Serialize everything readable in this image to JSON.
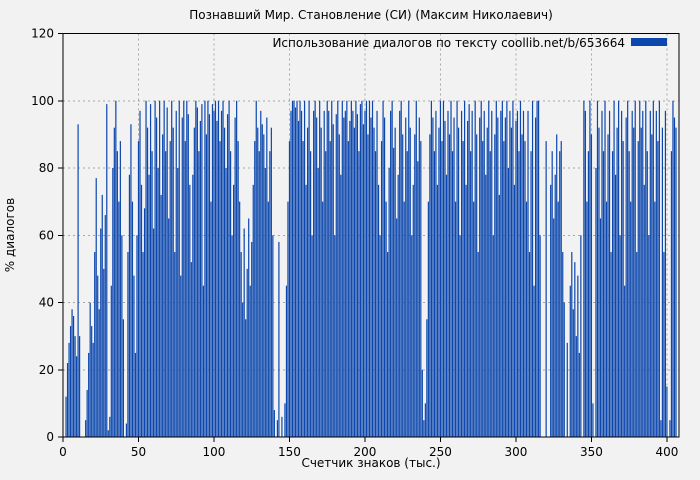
{
  "window": {
    "background_color": "#f2f2f2",
    "border_color": "#000000",
    "grid_color": "#a8a8a8",
    "text_color": "#000000"
  },
  "chart_data": {
    "type": "bar",
    "style": "impulses",
    "title": "Познавший Мир. Становление (СИ) (Максим Николаевич)",
    "legend": {
      "label": "Использование диалогов по тексту coollib.net/b/653664",
      "position": "top-right-inside"
    },
    "xlabel": "Счетчик знаков (тыс.)",
    "ylabel": "% диалогов",
    "xlim": [
      0,
      408
    ],
    "ylim": [
      0,
      120
    ],
    "xticks": [
      0,
      50,
      100,
      150,
      200,
      250,
      300,
      350,
      400
    ],
    "yticks": [
      0,
      20,
      40,
      60,
      80,
      100,
      120
    ],
    "grid": true,
    "bar_color": "#0c47ad",
    "x_start": 0,
    "x_step": 1,
    "values": [
      0,
      0,
      12,
      22,
      28,
      33,
      38,
      36,
      30,
      24,
      93,
      30,
      0,
      0,
      0,
      5,
      14,
      25,
      40,
      33,
      28,
      55,
      77,
      48,
      38,
      62,
      72,
      50,
      66,
      99,
      2,
      6,
      45,
      80,
      92,
      100,
      85,
      70,
      88,
      60,
      35,
      0,
      4,
      55,
      78,
      93,
      70,
      48,
      25,
      60,
      88,
      97,
      75,
      55,
      68,
      100,
      92,
      78,
      99,
      85,
      62,
      100,
      95,
      80,
      100,
      72,
      90,
      100,
      85,
      98,
      65,
      88,
      100,
      92,
      55,
      97,
      80,
      100,
      48,
      95,
      100,
      88,
      100,
      96,
      75,
      52,
      78,
      92,
      100,
      98,
      85,
      94,
      99,
      45,
      100,
      90,
      100,
      96,
      70,
      99,
      97,
      100,
      94,
      100,
      88,
      97,
      100,
      92,
      80,
      96,
      100,
      85,
      60,
      75,
      95,
      100,
      88,
      70,
      55,
      40,
      62,
      35,
      50,
      65,
      45,
      58,
      75,
      88,
      100,
      92,
      85,
      97,
      93,
      90,
      80,
      95,
      70,
      85,
      92,
      60,
      8,
      0,
      5,
      58,
      0,
      6,
      0,
      10,
      45,
      70,
      88,
      97,
      100,
      100,
      98,
      100,
      94,
      100,
      97,
      88,
      100,
      75,
      92,
      100,
      85,
      60,
      97,
      100,
      95,
      80,
      100,
      92,
      70,
      97,
      85,
      100,
      97,
      88,
      100,
      93,
      60,
      96,
      100,
      90,
      78,
      100,
      95,
      97,
      100,
      88,
      94,
      100,
      97,
      92,
      100,
      96,
      85,
      99,
      100,
      93,
      97,
      100,
      90,
      100,
      95,
      100,
      92,
      85,
      97,
      75,
      60,
      88,
      100,
      95,
      70,
      55,
      80,
      97,
      100,
      86,
      92,
      65,
      78,
      97,
      100,
      90,
      70,
      95,
      85,
      100,
      92,
      60,
      75,
      90,
      100,
      82,
      95,
      88,
      20,
      5,
      10,
      35,
      70,
      90,
      100,
      95,
      85,
      97,
      75,
      92,
      100,
      88,
      100,
      94,
      78,
      97,
      90,
      100,
      85,
      95,
      70,
      100,
      92,
      60,
      97,
      88,
      100,
      75,
      94,
      99,
      85,
      97,
      70,
      100,
      90,
      55,
      95,
      100,
      88,
      97,
      78,
      92,
      100,
      85,
      97,
      60,
      90,
      100,
      95,
      72,
      97,
      100,
      88,
      95,
      100,
      80,
      97,
      92,
      100,
      75,
      94,
      97,
      85,
      100,
      90,
      97,
      88,
      70,
      97,
      55,
      85,
      100,
      45,
      95,
      100,
      100,
      60,
      0,
      0,
      0,
      88,
      0,
      0,
      75,
      85,
      65,
      78,
      90,
      70,
      85,
      88,
      55,
      40,
      0,
      28,
      0,
      45,
      55,
      38,
      52,
      30,
      48,
      25,
      60,
      0,
      100,
      97,
      70,
      85,
      100,
      90,
      10,
      0,
      80,
      100,
      92,
      65,
      97,
      85,
      100,
      70,
      90,
      97,
      55,
      85,
      100,
      78,
      92,
      100,
      60,
      97,
      88,
      45,
      95,
      100,
      85,
      70,
      97,
      92,
      100,
      55,
      88,
      100,
      92,
      97,
      75,
      100,
      85,
      60,
      97,
      90,
      100,
      70,
      97,
      88,
      100,
      5,
      92,
      55,
      97,
      15,
      0,
      5,
      85,
      100,
      95,
      92,
      0,
      0,
      0
    ]
  }
}
